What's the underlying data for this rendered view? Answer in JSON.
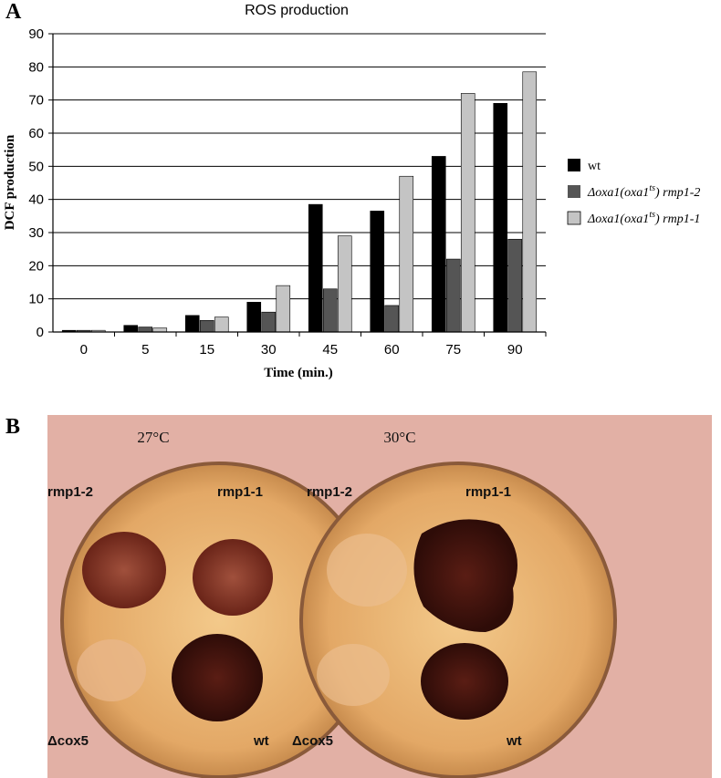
{
  "panel_a_label": "A",
  "panel_b_label": "B",
  "chart_data": {
    "type": "bar",
    "title": "ROS production",
    "xlabel": "Time (min.)",
    "ylabel": "DCF production",
    "categories": [
      "0",
      "5",
      "15",
      "30",
      "45",
      "60",
      "75",
      "90"
    ],
    "ylim": [
      0,
      90
    ],
    "yticks": [
      0,
      10,
      20,
      30,
      40,
      50,
      60,
      70,
      80,
      90
    ],
    "grid": true,
    "legend_position": "right",
    "series": [
      {
        "name": "wt",
        "color": "#000000",
        "values": [
          0.5,
          2,
          5,
          9,
          38.5,
          36.5,
          53,
          69
        ]
      },
      {
        "name": "Δoxa1(oxa1ts) rmp1-2",
        "color": "#555555",
        "values": [
          0.5,
          1.5,
          3.5,
          6,
          13,
          8,
          22,
          28
        ]
      },
      {
        "name": "Δoxa1(oxa1ts) rmp1-1",
        "color": "#c4c4c4",
        "values": [
          0.5,
          1.2,
          4.5,
          14,
          29,
          47,
          72,
          78.5
        ]
      }
    ]
  },
  "legend": {
    "wt": "wt",
    "s2_prefix": "Δoxa1(oxa1",
    "s2_sup": "ts",
    "s2_suffix": ") rmp1-2",
    "s3_prefix": "Δoxa1(oxa1",
    "s3_sup": "ts",
    "s3_suffix": ") rmp1-1"
  },
  "photo": {
    "left_temp": "27°C",
    "right_temp": "30°C",
    "left_rmp12": "rmp1-2",
    "left_rmp11": "rmp1-1",
    "left_cox5": "Δcox5",
    "left_wt": "wt",
    "right_rmp12": "rmp1-2",
    "right_rmp11": "rmp1-1",
    "right_cox5": "Δcox5",
    "right_wt": "wt"
  }
}
